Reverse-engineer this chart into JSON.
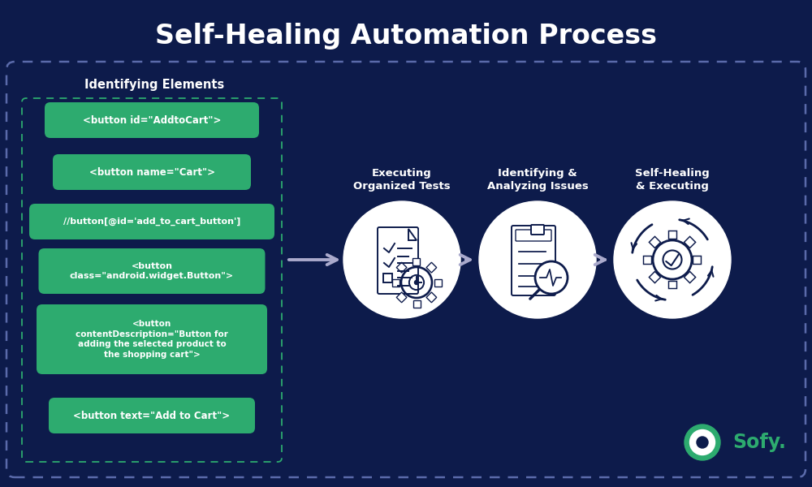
{
  "title": "Self-Healing Automation Process",
  "bg_color": "#0d1b4b",
  "title_color": "#ffffff",
  "green_color": "#2dab6f",
  "white_color": "#ffffff",
  "outer_box_border": "#5a6aaa",
  "inner_box_border": "#2dab6f",
  "section_title": "Identifying Elements",
  "code_labels": [
    "<button id=\"AddtoCart\">",
    "<button name=\"Cart\">",
    "//button[@id='add_to_cart_button']",
    "<button\nclass=\"android.widget.Button\">",
    "<button\ncontentDescription=\"Button for\nadding the selected product to\nthe shopping cart\">",
    "<button text=\"Add to Cart\">"
  ],
  "step_labels": [
    "Executing\nOrganized Tests",
    "Identifying &\nAnalyzing Issues",
    "Self-Healing\n& Executing"
  ],
  "arrow_color": "#aaaacc",
  "sofy_color": "#2dab6f",
  "icon_color": "#0d1b4b",
  "figsize": [
    10.0,
    6.0
  ],
  "dpi": 100
}
